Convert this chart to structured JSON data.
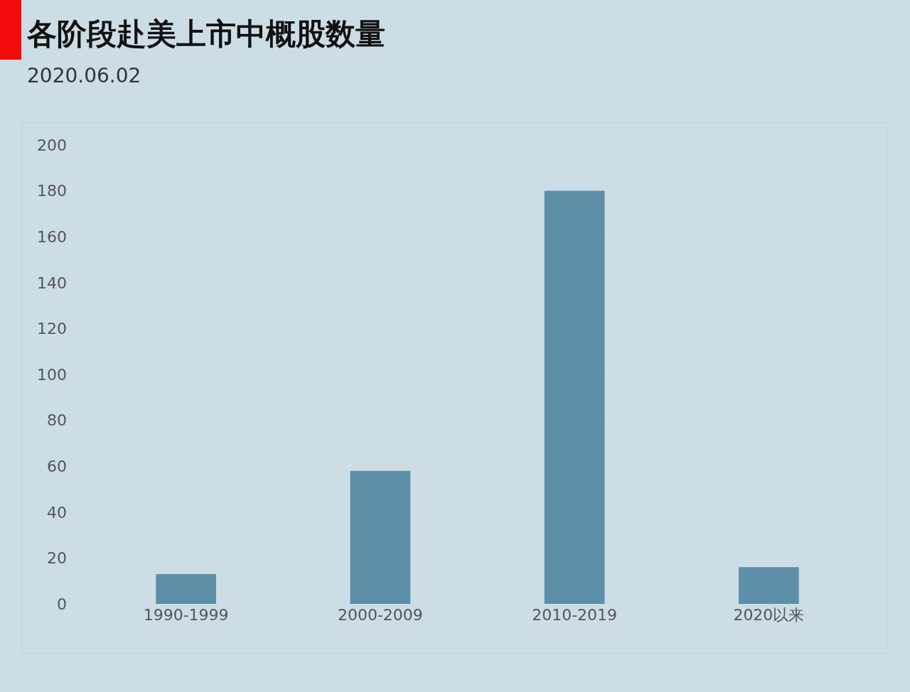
{
  "chart_data": {
    "type": "bar",
    "title": "各阶段赴美上市中概股数量",
    "subtitle": "2020.06.02",
    "categories": [
      "1990-1999",
      "2000-2009",
      "2010-2019",
      "2020以来"
    ],
    "values": [
      13,
      58,
      180,
      16
    ],
    "color": "#5e8fa8",
    "ylim": [
      0,
      200
    ],
    "yticks": [
      0,
      20,
      40,
      60,
      80,
      100,
      120,
      140,
      160,
      180,
      200
    ],
    "grid": "y"
  }
}
